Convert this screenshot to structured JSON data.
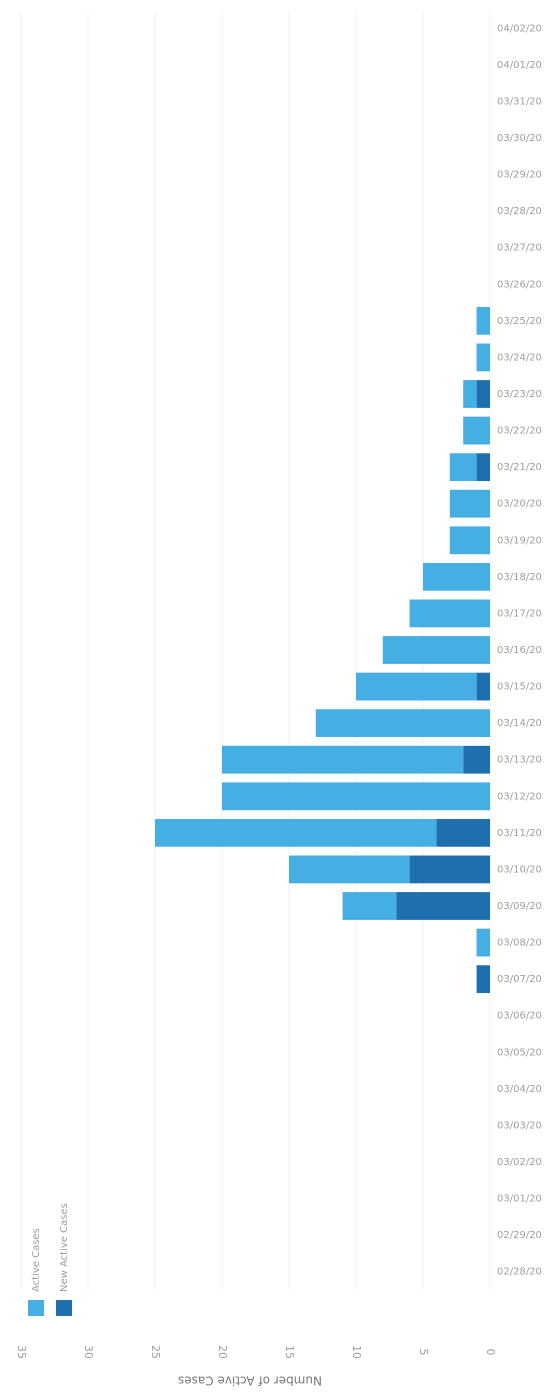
{
  "chart_data": {
    "type": "bar",
    "stacked": true,
    "orientation": "rotated",
    "y_label": "Number of Active Cases",
    "categories": [
      "02/28/20",
      "02/29/20",
      "03/01/20",
      "03/02/20",
      "03/03/20",
      "03/04/20",
      "03/05/20",
      "03/06/20",
      "03/07/20",
      "03/08/20",
      "03/09/20",
      "03/10/20",
      "03/11/20",
      "03/12/20",
      "03/13/20",
      "03/14/20",
      "03/15/20",
      "03/16/20",
      "03/17/20",
      "03/18/20",
      "03/19/20",
      "03/20/20",
      "03/21/20",
      "03/22/20",
      "03/23/20",
      "03/24/20",
      "03/25/20",
      "03/26/20",
      "03/27/20",
      "03/28/20",
      "03/29/20",
      "03/30/20",
      "03/31/20",
      "04/01/20",
      "04/02/20"
    ],
    "series": [
      {
        "name": "New Active Cases",
        "color": "#1f6fae",
        "values": [
          0,
          0,
          0,
          0,
          0,
          0,
          0,
          0,
          1,
          0,
          7,
          6,
          4,
          0,
          2,
          0,
          1,
          0,
          0,
          0,
          0,
          0,
          1,
          0,
          1,
          0,
          0,
          0,
          0,
          0,
          0,
          0,
          0,
          0,
          0
        ]
      },
      {
        "name": "Active Cases",
        "color": "#45aee3",
        "values": [
          0,
          0,
          0,
          0,
          0,
          0,
          0,
          0,
          0,
          1,
          4,
          9,
          21,
          20,
          18,
          13,
          9,
          8,
          6,
          5,
          3,
          3,
          2,
          2,
          1,
          1,
          1,
          0,
          0,
          0,
          0,
          0,
          0,
          0,
          0
        ]
      }
    ],
    "ylim": [
      0,
      35
    ],
    "yticks": [
      0,
      5,
      10,
      15,
      20,
      25,
      30,
      35
    ],
    "legend": "bottom-left"
  }
}
